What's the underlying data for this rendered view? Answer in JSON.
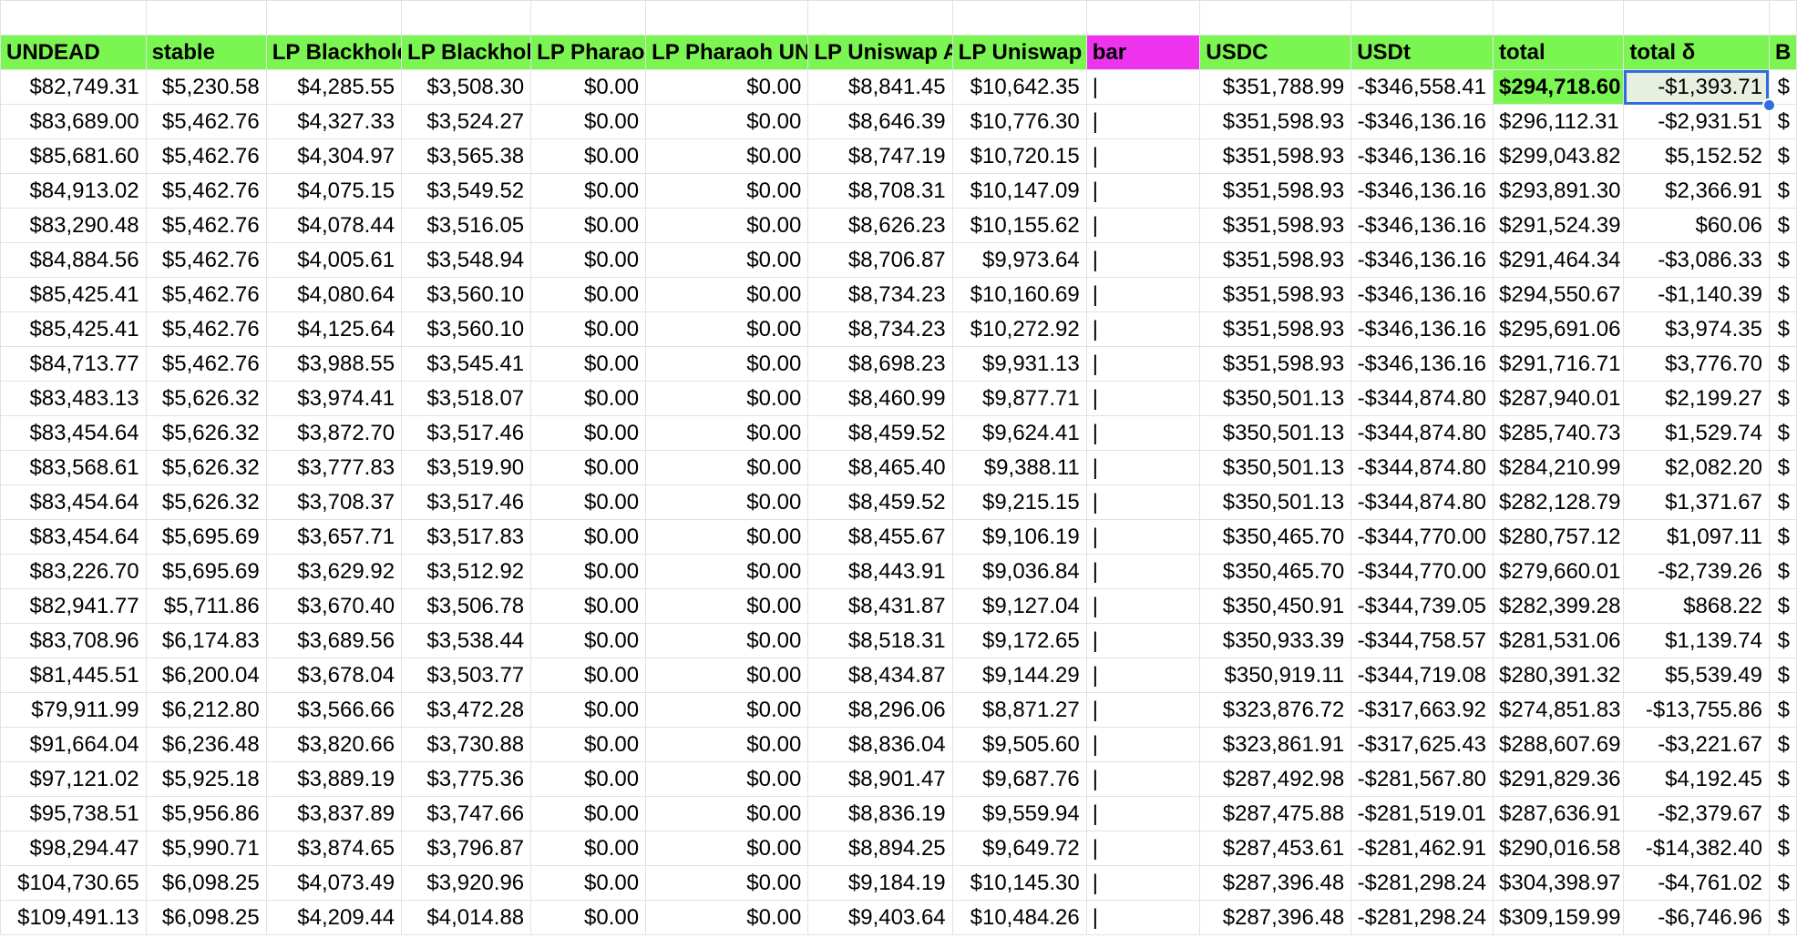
{
  "sheet": {
    "headers": [
      "UNDEAD",
      "stable",
      "LP Blackhole",
      "LP Blackhole",
      "LP Pharaoh",
      "LP Pharaoh UN",
      "LP Uniswap A",
      "LP Uniswap",
      "bar",
      "USDC",
      "USDt",
      "total",
      "total δ",
      "B"
    ],
    "rows": [
      [
        "$82,749.31",
        "$5,230.58",
        "$4,285.55",
        "$3,508.30",
        "$0.00",
        "$0.00",
        "$8,841.45",
        "$10,642.35",
        "|",
        "$351,788.99",
        "-$346,558.41",
        "$294,718.60",
        "-$1,393.71",
        "$"
      ],
      [
        "$83,689.00",
        "$5,462.76",
        "$4,327.33",
        "$3,524.27",
        "$0.00",
        "$0.00",
        "$8,646.39",
        "$10,776.30",
        "|",
        "$351,598.93",
        "-$346,136.16",
        "$296,112.31",
        "-$2,931.51",
        "$"
      ],
      [
        "$85,681.60",
        "$5,462.76",
        "$4,304.97",
        "$3,565.38",
        "$0.00",
        "$0.00",
        "$8,747.19",
        "$10,720.15",
        "|",
        "$351,598.93",
        "-$346,136.16",
        "$299,043.82",
        "$5,152.52",
        "$"
      ],
      [
        "$84,913.02",
        "$5,462.76",
        "$4,075.15",
        "$3,549.52",
        "$0.00",
        "$0.00",
        "$8,708.31",
        "$10,147.09",
        "|",
        "$351,598.93",
        "-$346,136.16",
        "$293,891.30",
        "$2,366.91",
        "$"
      ],
      [
        "$83,290.48",
        "$5,462.76",
        "$4,078.44",
        "$3,516.05",
        "$0.00",
        "$0.00",
        "$8,626.23",
        "$10,155.62",
        "|",
        "$351,598.93",
        "-$346,136.16",
        "$291,524.39",
        "$60.06",
        "$"
      ],
      [
        "$84,884.56",
        "$5,462.76",
        "$4,005.61",
        "$3,548.94",
        "$0.00",
        "$0.00",
        "$8,706.87",
        "$9,973.64",
        "|",
        "$351,598.93",
        "-$346,136.16",
        "$291,464.34",
        "-$3,086.33",
        "$"
      ],
      [
        "$85,425.41",
        "$5,462.76",
        "$4,080.64",
        "$3,560.10",
        "$0.00",
        "$0.00",
        "$8,734.23",
        "$10,160.69",
        "|",
        "$351,598.93",
        "-$346,136.16",
        "$294,550.67",
        "-$1,140.39",
        "$"
      ],
      [
        "$85,425.41",
        "$5,462.76",
        "$4,125.64",
        "$3,560.10",
        "$0.00",
        "$0.00",
        "$8,734.23",
        "$10,272.92",
        "|",
        "$351,598.93",
        "-$346,136.16",
        "$295,691.06",
        "$3,974.35",
        "$"
      ],
      [
        "$84,713.77",
        "$5,462.76",
        "$3,988.55",
        "$3,545.41",
        "$0.00",
        "$0.00",
        "$8,698.23",
        "$9,931.13",
        "|",
        "$351,598.93",
        "-$346,136.16",
        "$291,716.71",
        "$3,776.70",
        "$"
      ],
      [
        "$83,483.13",
        "$5,626.32",
        "$3,974.41",
        "$3,518.07",
        "$0.00",
        "$0.00",
        "$8,460.99",
        "$9,877.71",
        "|",
        "$350,501.13",
        "-$344,874.80",
        "$287,940.01",
        "$2,199.27",
        "$"
      ],
      [
        "$83,454.64",
        "$5,626.32",
        "$3,872.70",
        "$3,517.46",
        "$0.00",
        "$0.00",
        "$8,459.52",
        "$9,624.41",
        "|",
        "$350,501.13",
        "-$344,874.80",
        "$285,740.73",
        "$1,529.74",
        "$"
      ],
      [
        "$83,568.61",
        "$5,626.32",
        "$3,777.83",
        "$3,519.90",
        "$0.00",
        "$0.00",
        "$8,465.40",
        "$9,388.11",
        "|",
        "$350,501.13",
        "-$344,874.80",
        "$284,210.99",
        "$2,082.20",
        "$"
      ],
      [
        "$83,454.64",
        "$5,626.32",
        "$3,708.37",
        "$3,517.46",
        "$0.00",
        "$0.00",
        "$8,459.52",
        "$9,215.15",
        "|",
        "$350,501.13",
        "-$344,874.80",
        "$282,128.79",
        "$1,371.67",
        "$"
      ],
      [
        "$83,454.64",
        "$5,695.69",
        "$3,657.71",
        "$3,517.83",
        "$0.00",
        "$0.00",
        "$8,455.67",
        "$9,106.19",
        "|",
        "$350,465.70",
        "-$344,770.00",
        "$280,757.12",
        "$1,097.11",
        "$"
      ],
      [
        "$83,226.70",
        "$5,695.69",
        "$3,629.92",
        "$3,512.92",
        "$0.00",
        "$0.00",
        "$8,443.91",
        "$9,036.84",
        "|",
        "$350,465.70",
        "-$344,770.00",
        "$279,660.01",
        "-$2,739.26",
        "$"
      ],
      [
        "$82,941.77",
        "$5,711.86",
        "$3,670.40",
        "$3,506.78",
        "$0.00",
        "$0.00",
        "$8,431.87",
        "$9,127.04",
        "|",
        "$350,450.91",
        "-$344,739.05",
        "$282,399.28",
        "$868.22",
        "$"
      ],
      [
        "$83,708.96",
        "$6,174.83",
        "$3,689.56",
        "$3,538.44",
        "$0.00",
        "$0.00",
        "$8,518.31",
        "$9,172.65",
        "|",
        "$350,933.39",
        "-$344,758.57",
        "$281,531.06",
        "$1,139.74",
        "$"
      ],
      [
        "$81,445.51",
        "$6,200.04",
        "$3,678.04",
        "$3,503.77",
        "$0.00",
        "$0.00",
        "$8,434.87",
        "$9,144.29",
        "|",
        "$350,919.11",
        "-$344,719.08",
        "$280,391.32",
        "$5,539.49",
        "$"
      ],
      [
        "$79,911.99",
        "$6,212.80",
        "$3,566.66",
        "$3,472.28",
        "$0.00",
        "$0.00",
        "$8,296.06",
        "$8,871.27",
        "|",
        "$323,876.72",
        "-$317,663.92",
        "$274,851.83",
        "-$13,755.86",
        "$"
      ],
      [
        "$91,664.04",
        "$6,236.48",
        "$3,820.66",
        "$3,730.88",
        "$0.00",
        "$0.00",
        "$8,836.04",
        "$9,505.60",
        "|",
        "$323,861.91",
        "-$317,625.43",
        "$288,607.69",
        "-$3,221.67",
        "$"
      ],
      [
        "$97,121.02",
        "$5,925.18",
        "$3,889.19",
        "$3,775.36",
        "$0.00",
        "$0.00",
        "$8,901.47",
        "$9,687.76",
        "|",
        "$287,492.98",
        "-$281,567.80",
        "$291,829.36",
        "$4,192.45",
        "$"
      ],
      [
        "$95,738.51",
        "$5,956.86",
        "$3,837.89",
        "$3,747.66",
        "$0.00",
        "$0.00",
        "$8,836.19",
        "$9,559.94",
        "|",
        "$287,475.88",
        "-$281,519.01",
        "$287,636.91",
        "-$2,379.67",
        "$"
      ],
      [
        "$98,294.47",
        "$5,990.71",
        "$3,874.65",
        "$3,796.87",
        "$0.00",
        "$0.00",
        "$8,894.25",
        "$9,649.72",
        "|",
        "$287,453.61",
        "-$281,462.91",
        "$290,016.58",
        "-$14,382.40",
        "$"
      ],
      [
        "$104,730.65",
        "$6,098.25",
        "$4,073.49",
        "$3,920.96",
        "$0.00",
        "$0.00",
        "$9,184.19",
        "$10,145.30",
        "|",
        "$287,396.48",
        "-$281,298.24",
        "$304,398.97",
        "-$4,761.02",
        "$"
      ],
      [
        "$109,491.13",
        "$6,098.25",
        "$4,209.44",
        "$4,014.88",
        "$0.00",
        "$0.00",
        "$9,403.64",
        "$10,484.26",
        "|",
        "$287,396.48",
        "-$281,298.24",
        "$309,159.99",
        "-$6,746.96",
        "$"
      ]
    ],
    "colors": {
      "header_green": "#7bf551",
      "header_magenta": "#ee33ee",
      "selection_blue": "#2f6fdd",
      "gridline": "#e2e2e2"
    }
  }
}
